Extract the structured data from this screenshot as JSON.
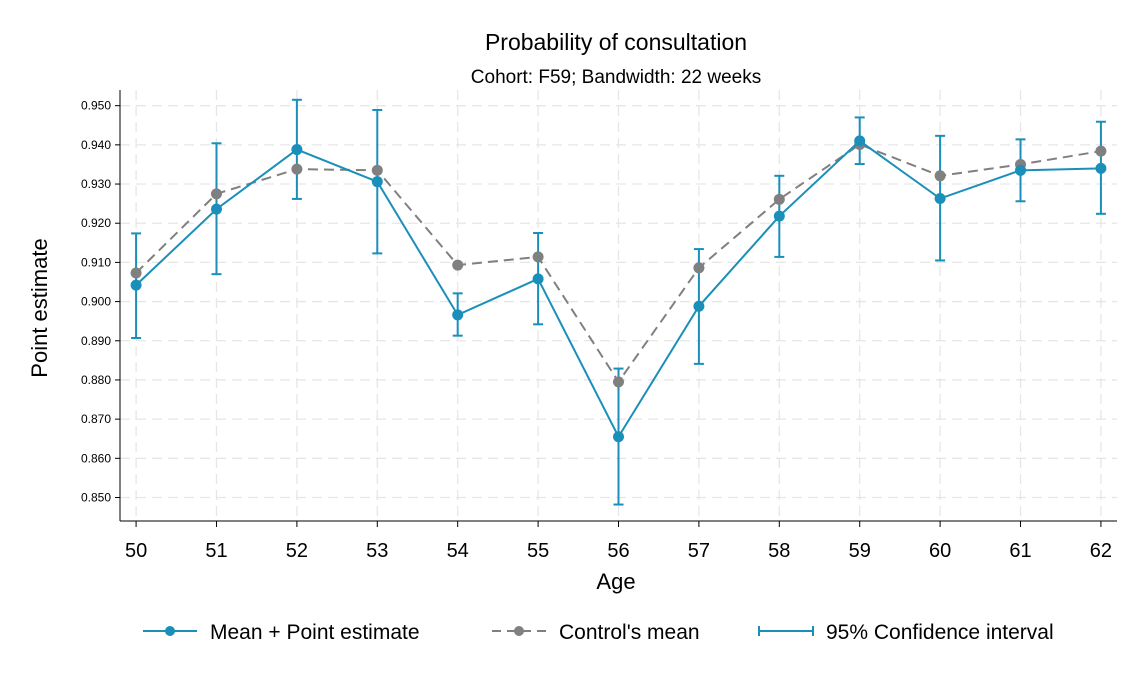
{
  "chart_data": {
    "type": "line",
    "title": "Probability of consultation",
    "subtitle": "Cohort: F59; Bandwidth: 22 weeks",
    "xlabel": "Age",
    "ylabel": "Point estimate",
    "x": [
      50,
      51,
      52,
      53,
      54,
      55,
      56,
      57,
      58,
      59,
      60,
      61,
      62
    ],
    "x_tick_labels": [
      "50",
      "51",
      "52",
      "53",
      "54",
      "55",
      "56",
      "57",
      "58",
      "59",
      "60",
      "61",
      "62"
    ],
    "y_ticks": [
      0.85,
      0.86,
      0.87,
      0.88,
      0.89,
      0.9,
      0.91,
      0.92,
      0.93,
      0.94,
      0.95
    ],
    "y_tick_labels": [
      "0.850",
      "0.860",
      "0.870",
      "0.880",
      "0.890",
      "0.900",
      "0.910",
      "0.920",
      "0.930",
      "0.940",
      "0.950"
    ],
    "ylim": [
      0.844,
      0.954
    ],
    "xlim": [
      49.8,
      62.2
    ],
    "grid": true,
    "legend_position": "bottom",
    "series": [
      {
        "name": "Mean + Point estimate",
        "style": "solid",
        "color": "#1a8fba",
        "values": [
          0.9042,
          0.9236,
          0.9388,
          0.9306,
          0.8966,
          0.9058,
          0.8655,
          0.8988,
          0.9218,
          0.941,
          0.9263,
          0.9335,
          0.934
        ]
      },
      {
        "name": "Control's mean",
        "style": "dashed",
        "color": "#808080",
        "values": [
          0.9073,
          0.9275,
          0.9338,
          0.9335,
          0.9093,
          0.9114,
          0.8795,
          0.9086,
          0.9261,
          0.9401,
          0.9321,
          0.935,
          0.9384
        ]
      }
    ],
    "confidence_interval": {
      "name": "95% Confidence interval",
      "color": "#1a8fba",
      "lower": [
        0.8907,
        0.907,
        0.9262,
        0.9123,
        0.8913,
        0.8942,
        0.8482,
        0.8841,
        0.9114,
        0.9351,
        0.9105,
        0.9256,
        0.9224
      ],
      "upper": [
        0.9174,
        0.9404,
        0.9515,
        0.9489,
        0.9021,
        0.9175,
        0.8829,
        0.9134,
        0.9321,
        0.947,
        0.9423,
        0.9414,
        0.9459
      ]
    }
  }
}
